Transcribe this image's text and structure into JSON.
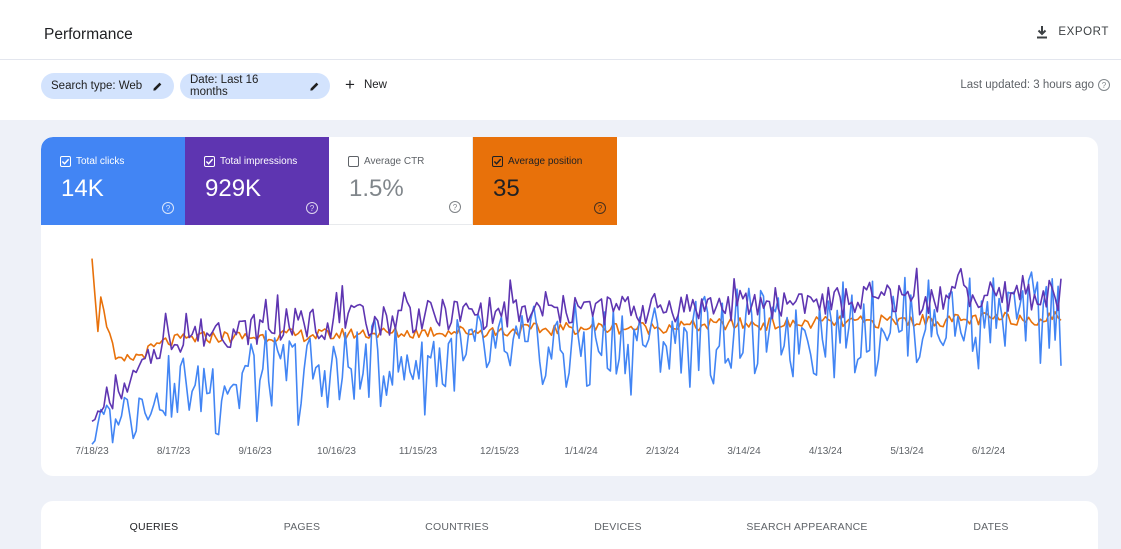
{
  "header": {
    "title": "Performance",
    "export_label": "EXPORT"
  },
  "filters": {
    "chips": [
      "Search type: Web",
      "Date: Last 16 months"
    ],
    "new_label": "New",
    "last_updated": "Last updated: 3 hours ago"
  },
  "metrics": {
    "clicks": {
      "label": "Total clicks",
      "value": "14K",
      "checked": true,
      "color": "#4285f4"
    },
    "impressions": {
      "label": "Total impressions",
      "value": "929K",
      "checked": true,
      "color": "#5e35b1"
    },
    "ctr": {
      "label": "Average CTR",
      "value": "1.5%",
      "checked": false,
      "color": "#ffffff"
    },
    "position": {
      "label": "Average position",
      "value": "35",
      "checked": true,
      "color": "#e8710a"
    }
  },
  "tabs": [
    "QUERIES",
    "PAGES",
    "COUNTRIES",
    "DEVICES",
    "SEARCH APPEARANCE",
    "DATES"
  ],
  "chart_data": {
    "type": "line",
    "x_tick_labels": [
      "7/18/23",
      "8/17/23",
      "9/16/23",
      "10/16/23",
      "11/15/23",
      "12/15/23",
      "1/14/24",
      "2/13/24",
      "3/14/24",
      "4/13/24",
      "5/13/24",
      "6/12/24"
    ],
    "x_range_days": [
      0,
      355
    ],
    "grid": false,
    "legend": "none",
    "series": [
      {
        "name": "Total clicks",
        "color": "#4285f4",
        "values": [
          8,
          14,
          22,
          26,
          30,
          30,
          34,
          36,
          38,
          36,
          38,
          40,
          44,
          42,
          44,
          46,
          48,
          46,
          50,
          50,
          52,
          52,
          54,
          56,
          56,
          58,
          58,
          60,
          60,
          60,
          62,
          64,
          64,
          66,
          66,
          66,
          68,
          68,
          68,
          70,
          70
        ]
      },
      {
        "name": "Total impressions",
        "color": "#5e35b1",
        "values": [
          10,
          20,
          38,
          52,
          56,
          58,
          58,
          60,
          62,
          62,
          63,
          64,
          64,
          66,
          66,
          68,
          68,
          68,
          68,
          68,
          70,
          70,
          70,
          70,
          72,
          72,
          72,
          72,
          74,
          74,
          74,
          74,
          76,
          76,
          76,
          76,
          76,
          76,
          78,
          78,
          78
        ]
      },
      {
        "name": "Average position",
        "color": "#e8710a",
        "values": [
          98,
          40,
          45,
          52,
          54,
          55,
          55,
          55,
          56,
          56,
          56,
          57,
          57,
          57,
          58,
          58,
          58,
          58,
          59,
          59,
          60,
          60,
          60,
          60,
          61,
          61,
          62,
          62,
          62,
          62,
          63,
          63,
          63,
          64,
          64,
          64,
          64,
          65,
          65,
          65,
          66
        ]
      }
    ]
  }
}
